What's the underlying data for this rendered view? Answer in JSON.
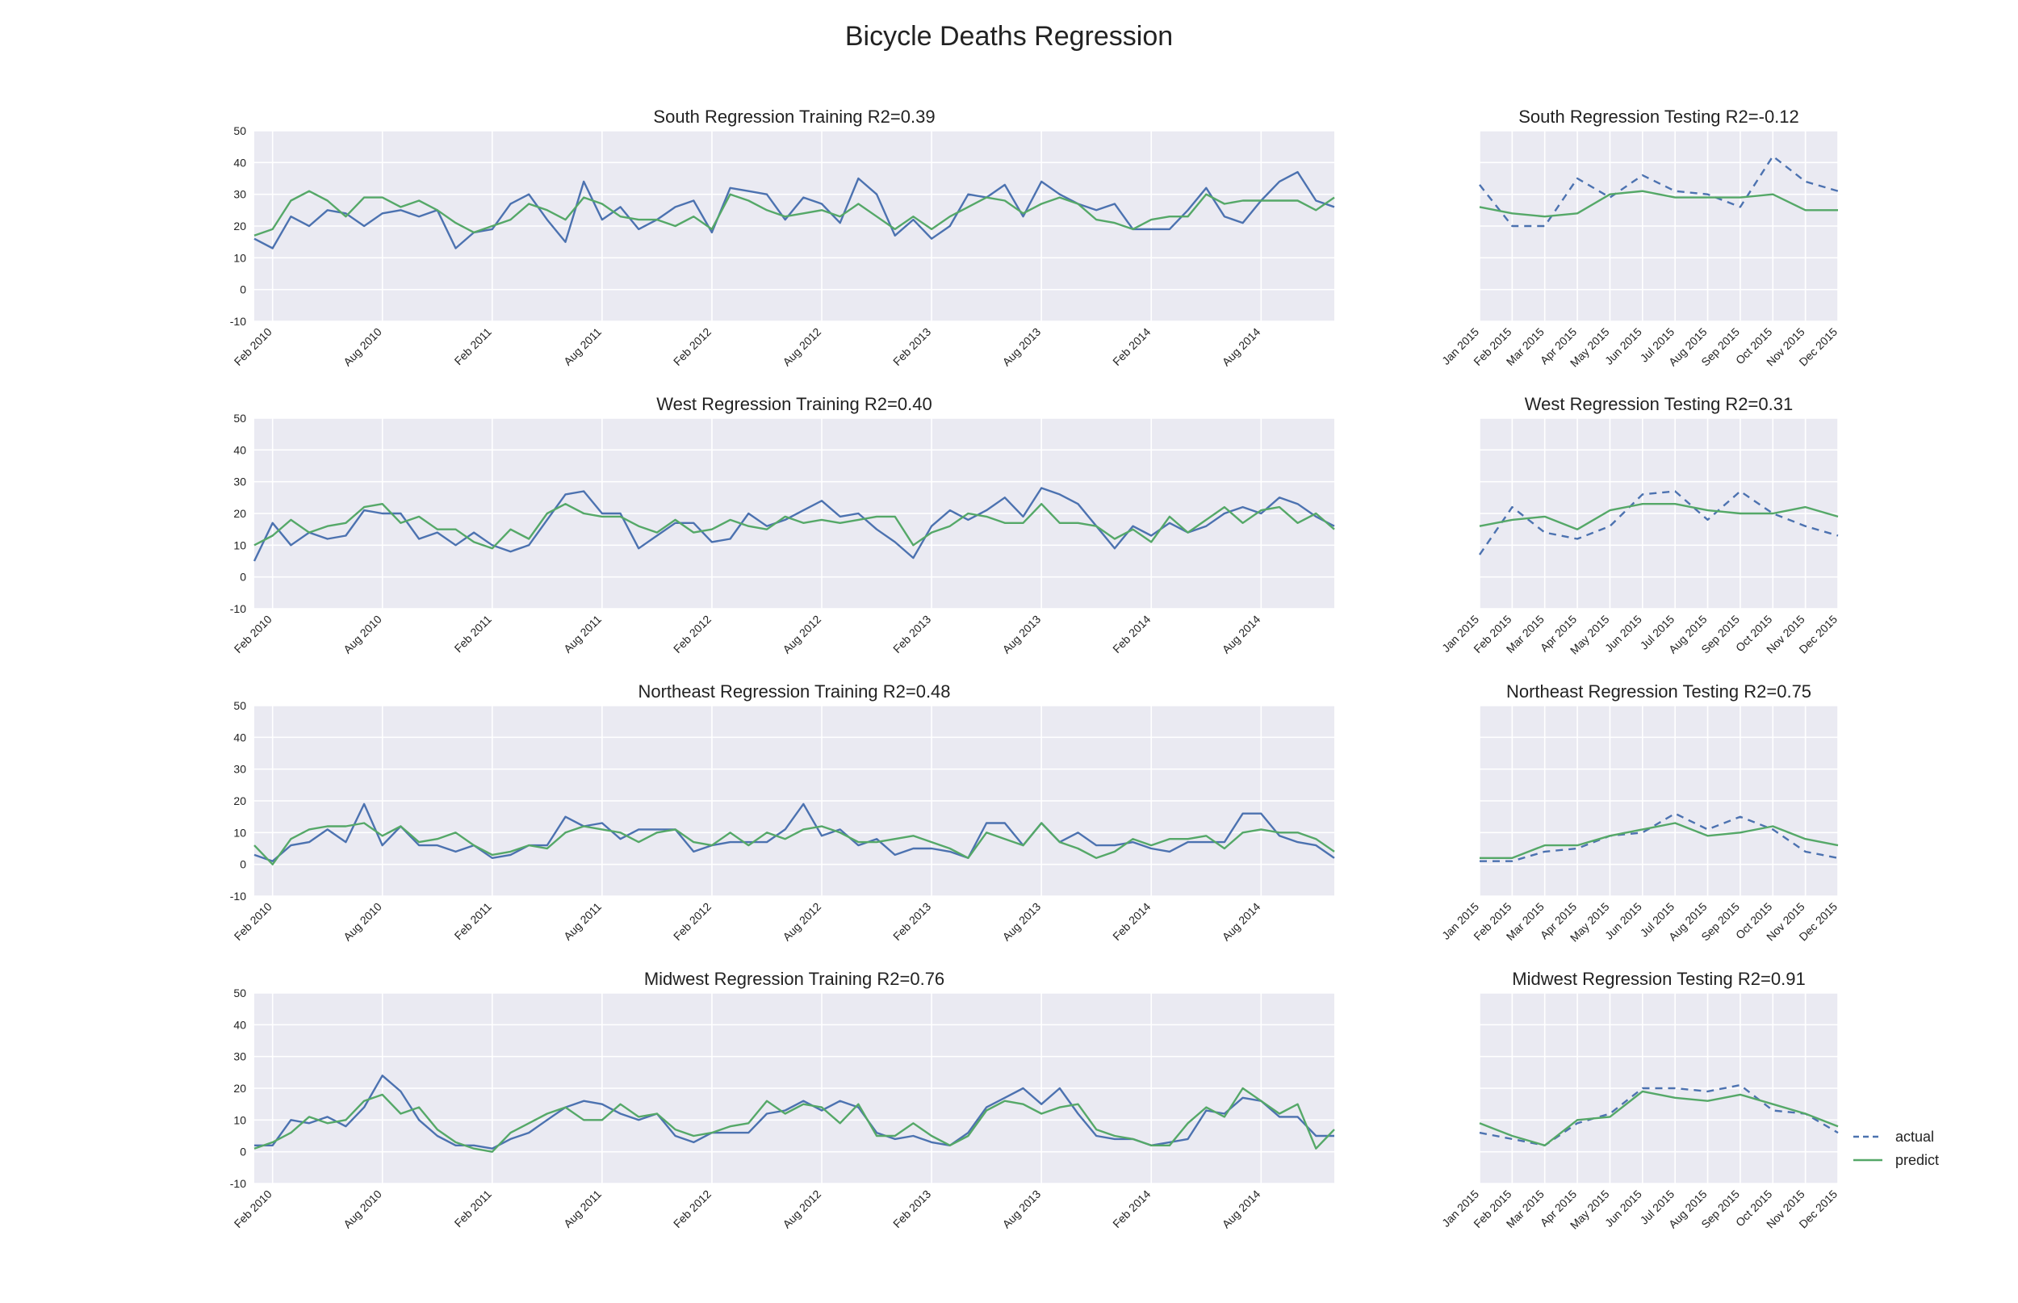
{
  "figure": {
    "title": "Bicycle Deaths Regression",
    "colors": {
      "actual": "#4c72b0",
      "predict": "#55a868",
      "panel_bg": "#eaeaf2",
      "grid": "#ffffff"
    }
  },
  "legend": {
    "placement": "right of bottom testing panel",
    "entries": [
      {
        "label": "actual",
        "style": "dashed",
        "color": "#4c72b0"
      },
      {
        "label": "predict",
        "style": "solid",
        "color": "#55a868"
      }
    ]
  },
  "chart_data": [
    {
      "type": "line",
      "role": "training",
      "region": "South",
      "title": "South Regression Training R2=0.39",
      "ylim": [
        -10,
        50
      ],
      "yticks": [
        -10,
        0,
        10,
        20,
        30,
        40,
        50
      ],
      "xlim": [
        "2010-01",
        "2014-12"
      ],
      "xticks": [
        {
          "x": "2010-02",
          "label": "Feb 2010"
        },
        {
          "x": "2010-08",
          "label": "Aug 2010"
        },
        {
          "x": "2011-02",
          "label": "Feb 2011"
        },
        {
          "x": "2011-08",
          "label": "Aug 2011"
        },
        {
          "x": "2012-02",
          "label": "Feb 2012"
        },
        {
          "x": "2012-08",
          "label": "Aug 2012"
        },
        {
          "x": "2013-02",
          "label": "Feb 2013"
        },
        {
          "x": "2013-08",
          "label": "Aug 2013"
        },
        {
          "x": "2014-02",
          "label": "Feb 2014"
        },
        {
          "x": "2014-08",
          "label": "Aug 2014"
        }
      ],
      "series": [
        {
          "name": "actual",
          "dash": false,
          "color": "#4c72b0",
          "values": [
            16,
            13,
            23,
            20,
            25,
            24,
            20,
            24,
            25,
            23,
            25,
            13,
            18,
            19,
            27,
            30,
            22,
            15,
            34,
            22,
            26,
            19,
            22,
            26,
            28,
            18,
            32,
            31,
            30,
            22,
            29,
            27,
            21,
            35,
            30,
            17,
            22,
            16,
            20,
            30,
            29,
            33,
            23,
            34,
            30,
            27,
            25,
            27,
            19,
            19,
            19,
            25,
            32,
            23,
            21,
            28,
            34,
            37,
            28,
            26
          ]
        },
        {
          "name": "predict",
          "dash": false,
          "color": "#55a868",
          "values": [
            17,
            19,
            28,
            31,
            28,
            23,
            29,
            29,
            26,
            28,
            25,
            21,
            18,
            20,
            22,
            27,
            25,
            22,
            29,
            27,
            23,
            22,
            22,
            20,
            23,
            19,
            30,
            28,
            25,
            23,
            24,
            25,
            23,
            27,
            23,
            19,
            23,
            19,
            23,
            26,
            29,
            28,
            24,
            27,
            29,
            27,
            22,
            21,
            19,
            22,
            23,
            23,
            30,
            27,
            28,
            28,
            28,
            28,
            25,
            29
          ]
        }
      ]
    },
    {
      "type": "line",
      "role": "testing",
      "region": "South",
      "title": "South Regression Testing R2=-0.12",
      "ylim": [
        -10,
        50
      ],
      "xticks": [
        "Jan 2015",
        "Feb 2015",
        "Mar 2015",
        "Apr 2015",
        "May 2015",
        "Jun 2015",
        "Jul 2015",
        "Aug 2015",
        "Sep 2015",
        "Oct 2015",
        "Nov 2015",
        "Dec 2015"
      ],
      "series": [
        {
          "name": "actual",
          "dash": true,
          "color": "#4c72b0",
          "values": [
            33,
            20,
            20,
            35,
            29,
            36,
            31,
            30,
            26,
            42,
            34,
            31
          ]
        },
        {
          "name": "predict",
          "dash": false,
          "color": "#55a868",
          "values": [
            26,
            24,
            23,
            24,
            30,
            31,
            29,
            29,
            29,
            30,
            25,
            25
          ]
        }
      ]
    },
    {
      "type": "line",
      "role": "training",
      "region": "West",
      "title": "West Regression Training R2=0.40",
      "ylim": [
        -10,
        50
      ],
      "yticks": [
        -10,
        0,
        10,
        20,
        30,
        40,
        50
      ],
      "xlim": [
        "2010-01",
        "2014-12"
      ],
      "xticks": [
        {
          "x": "2010-02",
          "label": "Feb 2010"
        },
        {
          "x": "2010-08",
          "label": "Aug 2010"
        },
        {
          "x": "2011-02",
          "label": "Feb 2011"
        },
        {
          "x": "2011-08",
          "label": "Aug 2011"
        },
        {
          "x": "2012-02",
          "label": "Feb 2012"
        },
        {
          "x": "2012-08",
          "label": "Aug 2012"
        },
        {
          "x": "2013-02",
          "label": "Feb 2013"
        },
        {
          "x": "2013-08",
          "label": "Aug 2013"
        },
        {
          "x": "2014-02",
          "label": "Feb 2014"
        },
        {
          "x": "2014-08",
          "label": "Aug 2014"
        }
      ],
      "series": [
        {
          "name": "actual",
          "dash": false,
          "color": "#4c72b0",
          "values": [
            5,
            17,
            10,
            14,
            12,
            13,
            21,
            20,
            20,
            12,
            14,
            10,
            14,
            10,
            8,
            10,
            18,
            26,
            27,
            20,
            20,
            9,
            13,
            17,
            17,
            11,
            12,
            20,
            16,
            18,
            21,
            24,
            19,
            20,
            15,
            11,
            6,
            16,
            21,
            18,
            21,
            25,
            19,
            28,
            26,
            23,
            16,
            9,
            16,
            13,
            17,
            14,
            16,
            20,
            22,
            20,
            25,
            23,
            19,
            16
          ]
        },
        {
          "name": "predict",
          "dash": false,
          "color": "#55a868",
          "values": [
            10,
            13,
            18,
            14,
            16,
            17,
            22,
            23,
            17,
            19,
            15,
            15,
            11,
            9,
            15,
            12,
            20,
            23,
            20,
            19,
            19,
            16,
            14,
            18,
            14,
            15,
            18,
            16,
            15,
            19,
            17,
            18,
            17,
            18,
            19,
            19,
            10,
            14,
            16,
            20,
            19,
            17,
            17,
            23,
            17,
            17,
            16,
            12,
            15,
            11,
            19,
            14,
            18,
            22,
            17,
            21,
            22,
            17,
            20,
            15
          ]
        }
      ]
    },
    {
      "type": "line",
      "role": "testing",
      "region": "West",
      "title": "West Regression Testing R2=0.31",
      "ylim": [
        -10,
        50
      ],
      "xticks": [
        "Jan 2015",
        "Feb 2015",
        "Mar 2015",
        "Apr 2015",
        "May 2015",
        "Jun 2015",
        "Jul 2015",
        "Aug 2015",
        "Sep 2015",
        "Oct 2015",
        "Nov 2015",
        "Dec 2015"
      ],
      "series": [
        {
          "name": "actual",
          "dash": true,
          "color": "#4c72b0",
          "values": [
            7,
            22,
            14,
            12,
            16,
            26,
            27,
            18,
            27,
            20,
            16,
            13
          ]
        },
        {
          "name": "predict",
          "dash": false,
          "color": "#55a868",
          "values": [
            16,
            18,
            19,
            15,
            21,
            23,
            23,
            21,
            20,
            20,
            22,
            19
          ]
        }
      ]
    },
    {
      "type": "line",
      "role": "training",
      "region": "Northeast",
      "title": "Northeast Regression Training R2=0.48",
      "ylim": [
        -10,
        50
      ],
      "yticks": [
        -10,
        0,
        10,
        20,
        30,
        40,
        50
      ],
      "xlim": [
        "2010-01",
        "2014-12"
      ],
      "xticks": [
        {
          "x": "2010-02",
          "label": "Feb 2010"
        },
        {
          "x": "2010-08",
          "label": "Aug 2010"
        },
        {
          "x": "2011-02",
          "label": "Feb 2011"
        },
        {
          "x": "2011-08",
          "label": "Aug 2011"
        },
        {
          "x": "2012-02",
          "label": "Feb 2012"
        },
        {
          "x": "2012-08",
          "label": "Aug 2012"
        },
        {
          "x": "2013-02",
          "label": "Feb 2013"
        },
        {
          "x": "2013-08",
          "label": "Aug 2013"
        },
        {
          "x": "2014-02",
          "label": "Feb 2014"
        },
        {
          "x": "2014-08",
          "label": "Aug 2014"
        }
      ],
      "series": [
        {
          "name": "actual",
          "dash": false,
          "color": "#4c72b0",
          "values": [
            3,
            1,
            6,
            7,
            11,
            7,
            19,
            6,
            12,
            6,
            6,
            4,
            6,
            2,
            3,
            6,
            6,
            15,
            12,
            13,
            8,
            11,
            11,
            11,
            4,
            6,
            7,
            7,
            7,
            11,
            19,
            9,
            11,
            6,
            8,
            3,
            5,
            5,
            4,
            2,
            13,
            13,
            6,
            13,
            7,
            10,
            6,
            6,
            7,
            5,
            4,
            7,
            7,
            7,
            16,
            16,
            9,
            7,
            6,
            2
          ]
        },
        {
          "name": "predict",
          "dash": false,
          "color": "#55a868",
          "values": [
            6,
            0,
            8,
            11,
            12,
            12,
            13,
            9,
            12,
            7,
            8,
            10,
            6,
            3,
            4,
            6,
            5,
            10,
            12,
            11,
            10,
            7,
            10,
            11,
            7,
            6,
            10,
            6,
            10,
            8,
            11,
            12,
            10,
            7,
            7,
            8,
            9,
            7,
            5,
            2,
            10,
            8,
            6,
            13,
            7,
            5,
            2,
            4,
            8,
            6,
            8,
            8,
            9,
            5,
            10,
            11,
            10,
            10,
            8,
            4
          ]
        }
      ]
    },
    {
      "type": "line",
      "role": "testing",
      "region": "Northeast",
      "title": "Northeast Regression Testing R2=0.75",
      "ylim": [
        -10,
        50
      ],
      "xticks": [
        "Jan 2015",
        "Feb 2015",
        "Mar 2015",
        "Apr 2015",
        "May 2015",
        "Jun 2015",
        "Jul 2015",
        "Aug 2015",
        "Sep 2015",
        "Oct 2015",
        "Nov 2015",
        "Dec 2015"
      ],
      "series": [
        {
          "name": "actual",
          "dash": true,
          "color": "#4c72b0",
          "values": [
            1,
            1,
            4,
            5,
            9,
            10,
            16,
            11,
            15,
            11,
            4,
            2
          ]
        },
        {
          "name": "predict",
          "dash": false,
          "color": "#55a868",
          "values": [
            2,
            2,
            6,
            6,
            9,
            11,
            13,
            9,
            10,
            12,
            8,
            6
          ]
        }
      ]
    },
    {
      "type": "line",
      "role": "training",
      "region": "Midwest",
      "title": "Midwest Regression Training R2=0.76",
      "ylim": [
        -10,
        50
      ],
      "yticks": [
        -10,
        0,
        10,
        20,
        30,
        40,
        50
      ],
      "xlim": [
        "2010-01",
        "2014-12"
      ],
      "xticks": [
        {
          "x": "2010-02",
          "label": "Feb 2010"
        },
        {
          "x": "2010-08",
          "label": "Aug 2010"
        },
        {
          "x": "2011-02",
          "label": "Feb 2011"
        },
        {
          "x": "2011-08",
          "label": "Aug 2011"
        },
        {
          "x": "2012-02",
          "label": "Feb 2012"
        },
        {
          "x": "2012-08",
          "label": "Aug 2012"
        },
        {
          "x": "2013-02",
          "label": "Feb 2013"
        },
        {
          "x": "2013-08",
          "label": "Aug 2013"
        },
        {
          "x": "2014-02",
          "label": "Feb 2014"
        },
        {
          "x": "2014-08",
          "label": "Aug 2014"
        }
      ],
      "series": [
        {
          "name": "actual",
          "dash": false,
          "color": "#4c72b0",
          "values": [
            2,
            2,
            10,
            9,
            11,
            8,
            14,
            24,
            19,
            10,
            5,
            2,
            2,
            1,
            4,
            6,
            10,
            14,
            16,
            15,
            12,
            10,
            12,
            5,
            3,
            6,
            6,
            6,
            12,
            13,
            16,
            13,
            16,
            14,
            6,
            4,
            5,
            3,
            2,
            6,
            14,
            17,
            20,
            15,
            20,
            12,
            5,
            4,
            4,
            2,
            3,
            4,
            13,
            12,
            17,
            16,
            11,
            11,
            5,
            5
          ]
        },
        {
          "name": "predict",
          "dash": false,
          "color": "#55a868",
          "values": [
            1,
            3,
            6,
            11,
            9,
            10,
            16,
            18,
            12,
            14,
            7,
            3,
            1,
            0,
            6,
            9,
            12,
            14,
            10,
            10,
            15,
            11,
            12,
            7,
            5,
            6,
            8,
            9,
            16,
            12,
            15,
            14,
            9,
            15,
            5,
            5,
            9,
            5,
            2,
            5,
            13,
            16,
            15,
            12,
            14,
            15,
            7,
            5,
            4,
            2,
            2,
            9,
            14,
            11,
            20,
            16,
            12,
            15,
            1,
            7
          ]
        }
      ]
    },
    {
      "type": "line",
      "role": "testing",
      "region": "Midwest",
      "title": "Midwest Regression Testing R2=0.91",
      "ylim": [
        -10,
        50
      ],
      "xticks": [
        "Jan 2015",
        "Feb 2015",
        "Mar 2015",
        "Apr 2015",
        "May 2015",
        "Jun 2015",
        "Jul 2015",
        "Aug 2015",
        "Sep 2015",
        "Oct 2015",
        "Nov 2015",
        "Dec 2015"
      ],
      "series": [
        {
          "name": "actual",
          "dash": true,
          "color": "#4c72b0",
          "values": [
            6,
            4,
            2,
            9,
            12,
            20,
            20,
            19,
            21,
            13,
            12,
            6
          ]
        },
        {
          "name": "predict",
          "dash": false,
          "color": "#55a868",
          "values": [
            9,
            5,
            2,
            10,
            11,
            19,
            17,
            16,
            18,
            15,
            12,
            8
          ]
        }
      ]
    }
  ]
}
